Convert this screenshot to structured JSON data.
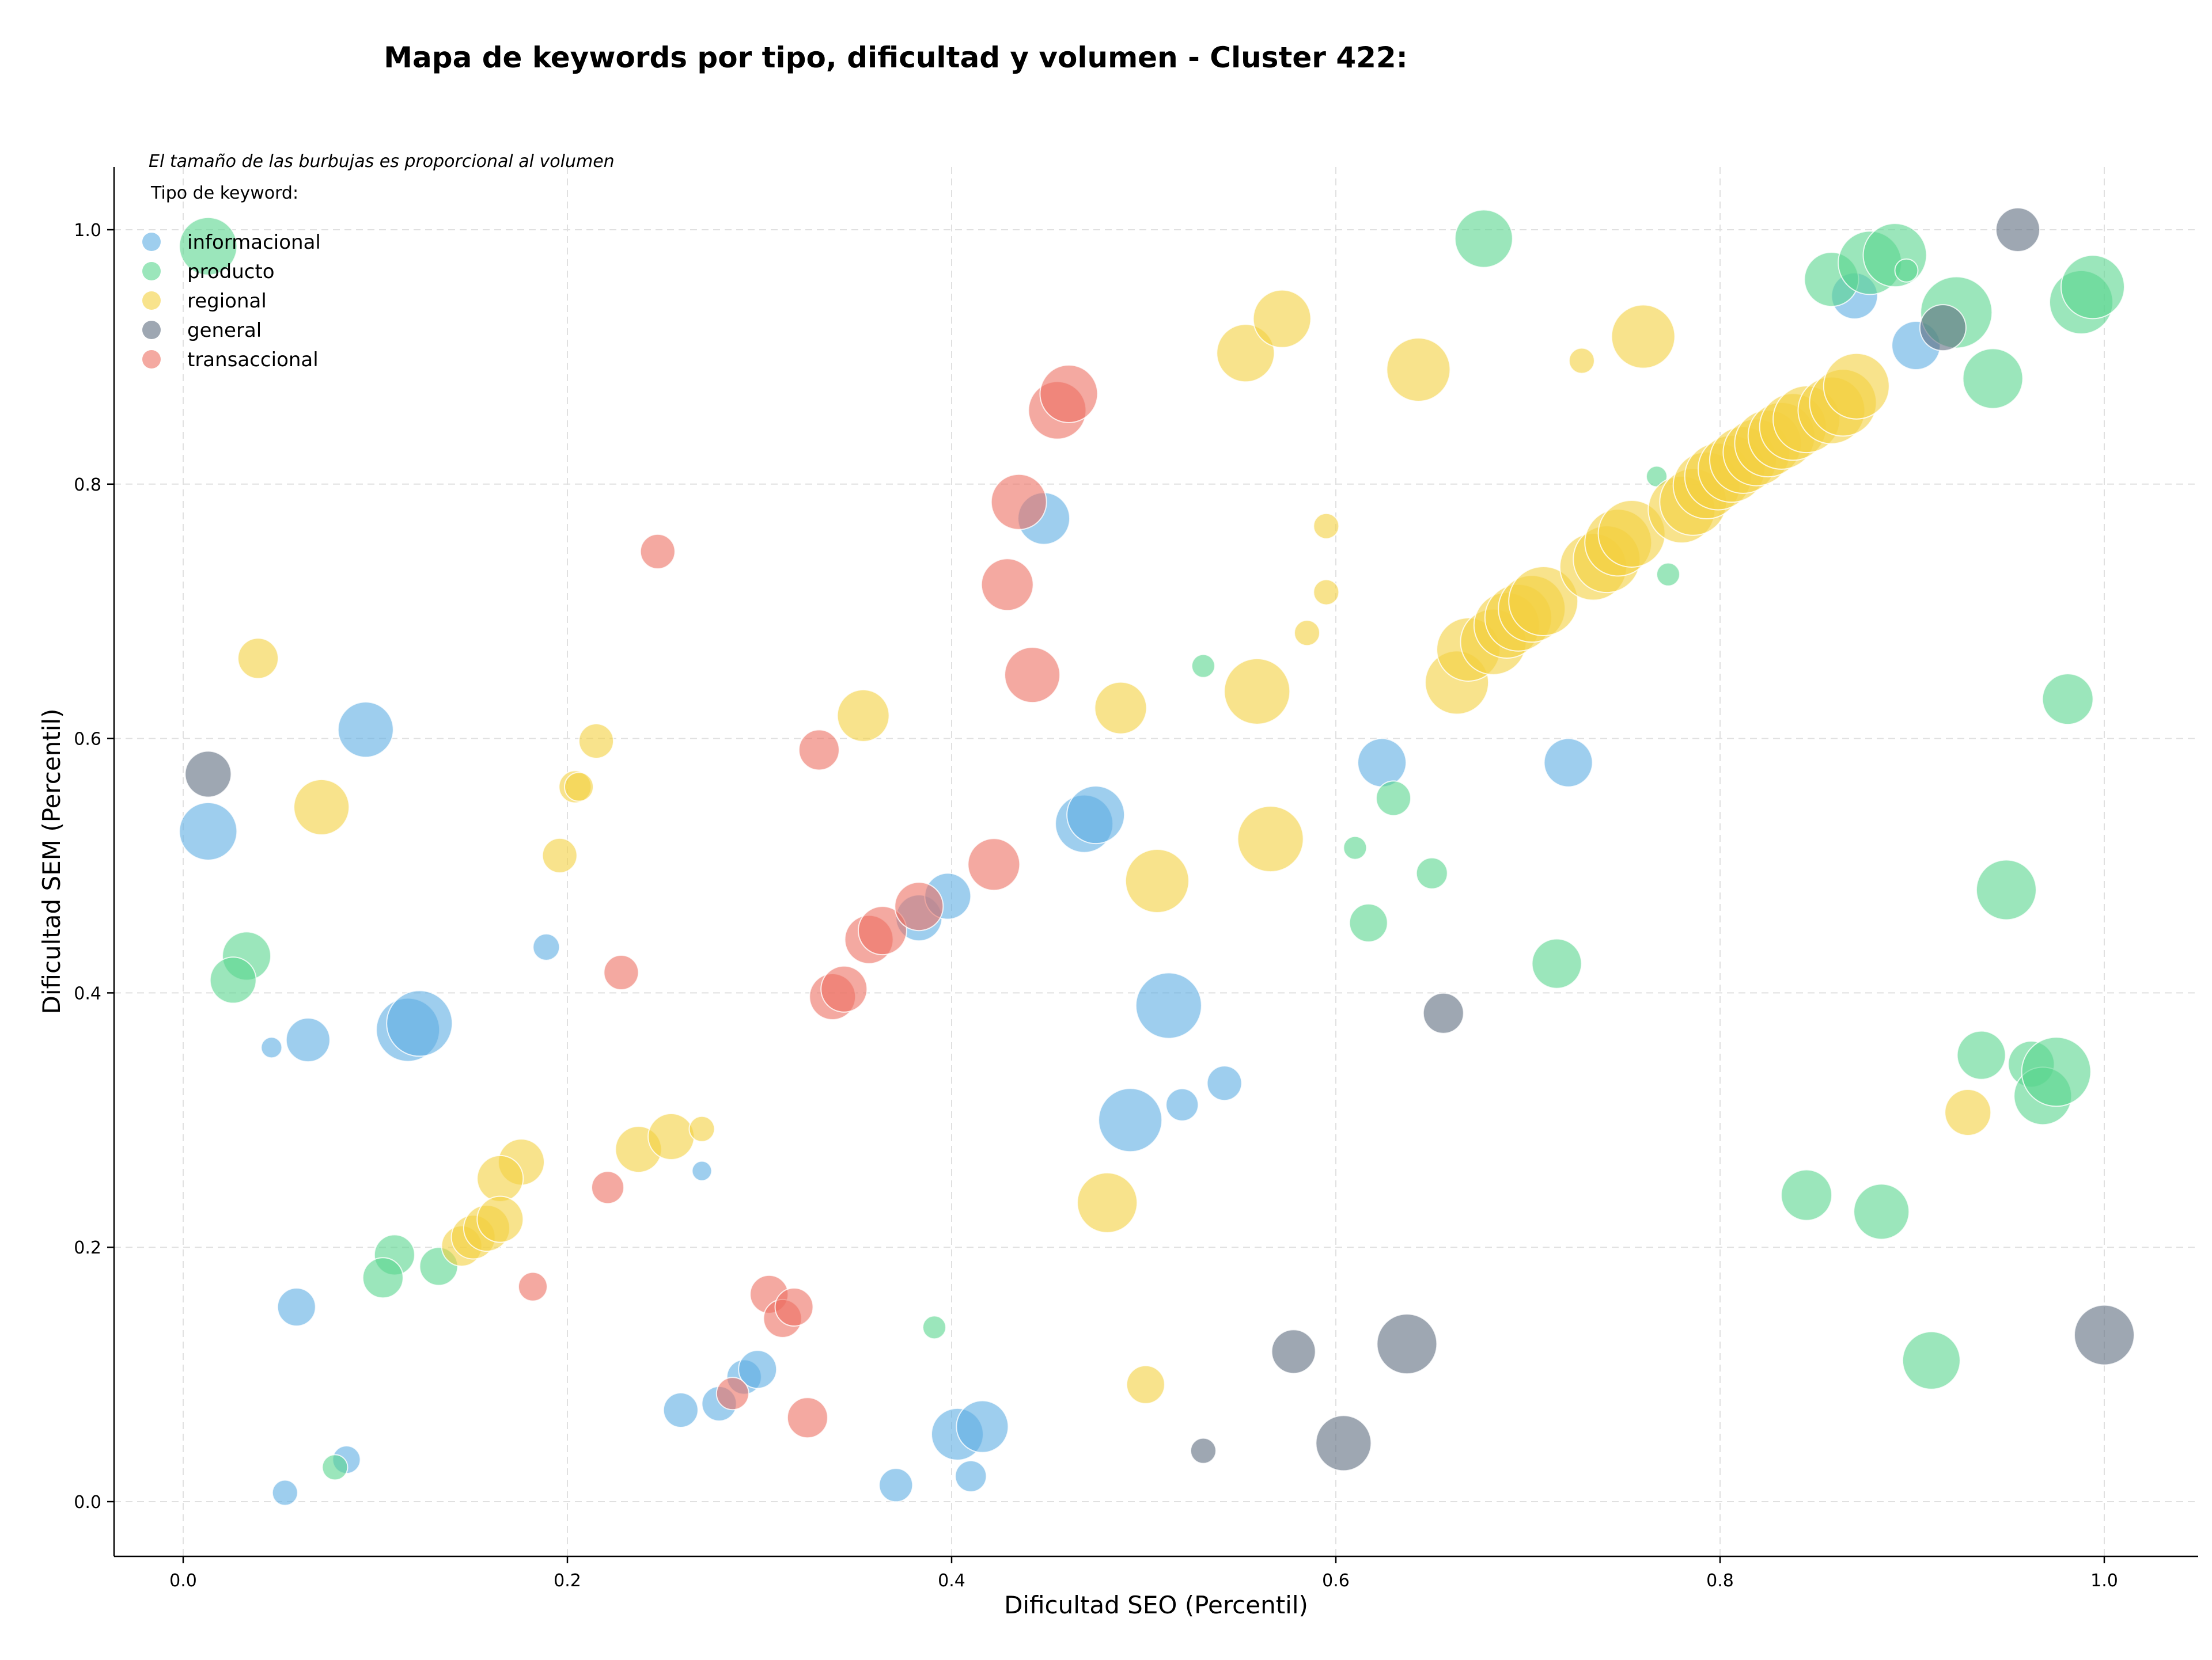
{
  "chart_data": {
    "type": "scatter",
    "title": "Mapa de keywords por tipo, dificultad y volumen - Cluster 422:",
    "xlabel": "Dificultad SEO (Percentil)",
    "ylabel": "Dificultad SEM (Percentil)",
    "note": "El tamaño de las burbujas es proporcional al volumen",
    "legend_title": "Tipo de keyword:",
    "legend_position": "top-left",
    "xlim": [
      -0.035,
      1.048
    ],
    "ylim": [
      -0.042,
      1.048
    ],
    "xticks": [
      0.0,
      0.2,
      0.4,
      0.6,
      0.8,
      1.0
    ],
    "yticks": [
      0.0,
      0.2,
      0.4,
      0.6,
      0.8,
      1.0
    ],
    "xtick_labels": [
      "0.0",
      "0.2",
      "0.4",
      "0.6",
      "0.8",
      "1.0"
    ],
    "ytick_labels": [
      "0.0",
      "0.2",
      "0.4",
      "0.6",
      "0.8",
      "1.0"
    ],
    "grid": true,
    "series": [
      {
        "name": "informacional",
        "color": "#5dade2",
        "points": [
          {
            "x": 0.013,
            "y": 0.527,
            "v": 50
          },
          {
            "x": 0.095,
            "y": 0.607,
            "v": 48
          },
          {
            "x": 0.065,
            "y": 0.363,
            "v": 38
          },
          {
            "x": 0.046,
            "y": 0.357,
            "v": 18
          },
          {
            "x": 0.059,
            "y": 0.153,
            "v": 33
          },
          {
            "x": 0.053,
            "y": 0.007,
            "v": 22
          },
          {
            "x": 0.085,
            "y": 0.033,
            "v": 24
          },
          {
            "x": 0.117,
            "y": 0.371,
            "v": 55
          },
          {
            "x": 0.123,
            "y": 0.376,
            "v": 57
          },
          {
            "x": 0.189,
            "y": 0.436,
            "v": 23
          },
          {
            "x": 0.27,
            "y": 0.26,
            "v": 17
          },
          {
            "x": 0.259,
            "y": 0.072,
            "v": 30
          },
          {
            "x": 0.279,
            "y": 0.077,
            "v": 30
          },
          {
            "x": 0.292,
            "y": 0.098,
            "v": 30
          },
          {
            "x": 0.299,
            "y": 0.104,
            "v": 33
          },
          {
            "x": 0.371,
            "y": 0.013,
            "v": 29
          },
          {
            "x": 0.41,
            "y": 0.02,
            "v": 27
          },
          {
            "x": 0.403,
            "y": 0.053,
            "v": 45
          },
          {
            "x": 0.416,
            "y": 0.059,
            "v": 45
          },
          {
            "x": 0.383,
            "y": 0.459,
            "v": 40
          },
          {
            "x": 0.398,
            "y": 0.476,
            "v": 40
          },
          {
            "x": 0.448,
            "y": 0.773,
            "v": 45
          },
          {
            "x": 0.469,
            "y": 0.533,
            "v": 50
          },
          {
            "x": 0.475,
            "y": 0.54,
            "v": 50
          },
          {
            "x": 0.493,
            "y": 0.3,
            "v": 55
          },
          {
            "x": 0.513,
            "y": 0.39,
            "v": 57
          },
          {
            "x": 0.52,
            "y": 0.312,
            "v": 28
          },
          {
            "x": 0.542,
            "y": 0.329,
            "v": 30
          },
          {
            "x": 0.624,
            "y": 0.581,
            "v": 42
          },
          {
            "x": 0.721,
            "y": 0.581,
            "v": 42
          },
          {
            "x": 0.87,
            "y": 0.948,
            "v": 40
          },
          {
            "x": 0.902,
            "y": 0.909,
            "v": 42
          }
        ]
      },
      {
        "name": "producto",
        "color": "#58d68d",
        "points": [
          {
            "x": 0.013,
            "y": 0.987,
            "v": 50
          },
          {
            "x": 0.033,
            "y": 0.429,
            "v": 42
          },
          {
            "x": 0.026,
            "y": 0.41,
            "v": 40
          },
          {
            "x": 0.079,
            "y": 0.027,
            "v": 22
          },
          {
            "x": 0.11,
            "y": 0.194,
            "v": 35
          },
          {
            "x": 0.104,
            "y": 0.176,
            "v": 35
          },
          {
            "x": 0.133,
            "y": 0.185,
            "v": 33
          },
          {
            "x": 0.391,
            "y": 0.137,
            "v": 20
          },
          {
            "x": 0.531,
            "y": 0.657,
            "v": 20
          },
          {
            "x": 0.61,
            "y": 0.514,
            "v": 20
          },
          {
            "x": 0.63,
            "y": 0.553,
            "v": 30
          },
          {
            "x": 0.617,
            "y": 0.455,
            "v": 33
          },
          {
            "x": 0.65,
            "y": 0.494,
            "v": 27
          },
          {
            "x": 0.677,
            "y": 0.993,
            "v": 50
          },
          {
            "x": 0.715,
            "y": 0.423,
            "v": 43
          },
          {
            "x": 0.767,
            "y": 0.806,
            "v": 18
          },
          {
            "x": 0.773,
            "y": 0.729,
            "v": 20
          },
          {
            "x": 0.845,
            "y": 0.241,
            "v": 44
          },
          {
            "x": 0.858,
            "y": 0.961,
            "v": 47
          },
          {
            "x": 0.878,
            "y": 0.974,
            "v": 55
          },
          {
            "x": 0.891,
            "y": 0.98,
            "v": 55
          },
          {
            "x": 0.897,
            "y": 0.968,
            "v": 20
          },
          {
            "x": 0.884,
            "y": 0.228,
            "v": 48
          },
          {
            "x": 0.91,
            "y": 0.111,
            "v": 50
          },
          {
            "x": 0.923,
            "y": 0.935,
            "v": 62
          },
          {
            "x": 0.942,
            "y": 0.883,
            "v": 52
          },
          {
            "x": 0.936,
            "y": 0.351,
            "v": 42
          },
          {
            "x": 0.949,
            "y": 0.481,
            "v": 52
          },
          {
            "x": 0.962,
            "y": 0.344,
            "v": 40
          },
          {
            "x": 0.968,
            "y": 0.319,
            "v": 50
          },
          {
            "x": 0.975,
            "y": 0.338,
            "v": 60
          },
          {
            "x": 0.981,
            "y": 0.631,
            "v": 44
          },
          {
            "x": 0.988,
            "y": 0.943,
            "v": 55
          },
          {
            "x": 0.994,
            "y": 0.955,
            "v": 55
          }
        ]
      },
      {
        "name": "regional",
        "color": "#f4d03f",
        "points": [
          {
            "x": 0.039,
            "y": 0.663,
            "v": 35
          },
          {
            "x": 0.072,
            "y": 0.546,
            "v": 48
          },
          {
            "x": 0.196,
            "y": 0.508,
            "v": 30
          },
          {
            "x": 0.215,
            "y": 0.598,
            "v": 30
          },
          {
            "x": 0.204,
            "y": 0.562,
            "v": 28
          },
          {
            "x": 0.206,
            "y": 0.562,
            "v": 25
          },
          {
            "x": 0.176,
            "y": 0.267,
            "v": 40
          },
          {
            "x": 0.165,
            "y": 0.254,
            "v": 40
          },
          {
            "x": 0.145,
            "y": 0.201,
            "v": 35
          },
          {
            "x": 0.151,
            "y": 0.208,
            "v": 38
          },
          {
            "x": 0.158,
            "y": 0.215,
            "v": 40
          },
          {
            "x": 0.165,
            "y": 0.222,
            "v": 40
          },
          {
            "x": 0.237,
            "y": 0.277,
            "v": 40
          },
          {
            "x": 0.254,
            "y": 0.287,
            "v": 40
          },
          {
            "x": 0.27,
            "y": 0.293,
            "v": 22
          },
          {
            "x": 0.354,
            "y": 0.618,
            "v": 45
          },
          {
            "x": 0.481,
            "y": 0.235,
            "v": 52
          },
          {
            "x": 0.488,
            "y": 0.624,
            "v": 45
          },
          {
            "x": 0.501,
            "y": 0.092,
            "v": 33
          },
          {
            "x": 0.507,
            "y": 0.488,
            "v": 55
          },
          {
            "x": 0.553,
            "y": 0.903,
            "v": 50
          },
          {
            "x": 0.572,
            "y": 0.93,
            "v": 50
          },
          {
            "x": 0.559,
            "y": 0.637,
            "v": 57
          },
          {
            "x": 0.566,
            "y": 0.521,
            "v": 57
          },
          {
            "x": 0.585,
            "y": 0.683,
            "v": 22
          },
          {
            "x": 0.595,
            "y": 0.767,
            "v": 22
          },
          {
            "x": 0.595,
            "y": 0.715,
            "v": 22
          },
          {
            "x": 0.643,
            "y": 0.89,
            "v": 55
          },
          {
            "x": 0.663,
            "y": 0.644,
            "v": 55
          },
          {
            "x": 0.669,
            "y": 0.67,
            "v": 55
          },
          {
            "x": 0.682,
            "y": 0.676,
            "v": 57
          },
          {
            "x": 0.689,
            "y": 0.689,
            "v": 57
          },
          {
            "x": 0.695,
            "y": 0.695,
            "v": 58
          },
          {
            "x": 0.702,
            "y": 0.702,
            "v": 58
          },
          {
            "x": 0.708,
            "y": 0.708,
            "v": 60
          },
          {
            "x": 0.728,
            "y": 0.897,
            "v": 22
          },
          {
            "x": 0.734,
            "y": 0.735,
            "v": 58
          },
          {
            "x": 0.741,
            "y": 0.741,
            "v": 58
          },
          {
            "x": 0.747,
            "y": 0.754,
            "v": 58
          },
          {
            "x": 0.754,
            "y": 0.761,
            "v": 58
          },
          {
            "x": 0.76,
            "y": 0.916,
            "v": 55
          },
          {
            "x": 0.78,
            "y": 0.78,
            "v": 58
          },
          {
            "x": 0.786,
            "y": 0.786,
            "v": 58
          },
          {
            "x": 0.793,
            "y": 0.799,
            "v": 58
          },
          {
            "x": 0.799,
            "y": 0.806,
            "v": 58
          },
          {
            "x": 0.806,
            "y": 0.812,
            "v": 58
          },
          {
            "x": 0.812,
            "y": 0.819,
            "v": 58
          },
          {
            "x": 0.819,
            "y": 0.825,
            "v": 58
          },
          {
            "x": 0.825,
            "y": 0.832,
            "v": 58
          },
          {
            "x": 0.832,
            "y": 0.838,
            "v": 58
          },
          {
            "x": 0.838,
            "y": 0.845,
            "v": 58
          },
          {
            "x": 0.845,
            "y": 0.851,
            "v": 58
          },
          {
            "x": 0.858,
            "y": 0.858,
            "v": 58
          },
          {
            "x": 0.864,
            "y": 0.864,
            "v": 58
          },
          {
            "x": 0.871,
            "y": 0.877,
            "v": 57
          },
          {
            "x": 0.929,
            "y": 0.306,
            "v": 40
          }
        ]
      },
      {
        "name": "general",
        "color": "#5d6d7e",
        "points": [
          {
            "x": 0.013,
            "y": 0.572,
            "v": 40
          },
          {
            "x": 0.531,
            "y": 0.04,
            "v": 22
          },
          {
            "x": 0.578,
            "y": 0.118,
            "v": 38
          },
          {
            "x": 0.604,
            "y": 0.046,
            "v": 48
          },
          {
            "x": 0.637,
            "y": 0.124,
            "v": 52
          },
          {
            "x": 0.656,
            "y": 0.384,
            "v": 35
          },
          {
            "x": 0.916,
            "y": 0.923,
            "v": 40
          },
          {
            "x": 0.955,
            "y": 1.0,
            "v": 38
          },
          {
            "x": 1.0,
            "y": 0.131,
            "v": 52
          }
        ]
      },
      {
        "name": "transaccional",
        "color": "#ec7063",
        "points": [
          {
            "x": 0.182,
            "y": 0.169,
            "v": 25
          },
          {
            "x": 0.221,
            "y": 0.247,
            "v": 28
          },
          {
            "x": 0.228,
            "y": 0.416,
            "v": 30
          },
          {
            "x": 0.247,
            "y": 0.747,
            "v": 30
          },
          {
            "x": 0.286,
            "y": 0.085,
            "v": 28
          },
          {
            "x": 0.305,
            "y": 0.163,
            "v": 33
          },
          {
            "x": 0.312,
            "y": 0.144,
            "v": 33
          },
          {
            "x": 0.318,
            "y": 0.153,
            "v": 33
          },
          {
            "x": 0.325,
            "y": 0.066,
            "v": 35
          },
          {
            "x": 0.331,
            "y": 0.591,
            "v": 35
          },
          {
            "x": 0.338,
            "y": 0.397,
            "v": 40
          },
          {
            "x": 0.344,
            "y": 0.403,
            "v": 40
          },
          {
            "x": 0.357,
            "y": 0.442,
            "v": 42
          },
          {
            "x": 0.364,
            "y": 0.449,
            "v": 42
          },
          {
            "x": 0.383,
            "y": 0.468,
            "v": 42
          },
          {
            "x": 0.422,
            "y": 0.501,
            "v": 45
          },
          {
            "x": 0.429,
            "y": 0.721,
            "v": 45
          },
          {
            "x": 0.435,
            "y": 0.786,
            "v": 48
          },
          {
            "x": 0.442,
            "y": 0.65,
            "v": 48
          },
          {
            "x": 0.455,
            "y": 0.858,
            "v": 50
          },
          {
            "x": 0.461,
            "y": 0.871,
            "v": 50
          }
        ]
      }
    ]
  }
}
